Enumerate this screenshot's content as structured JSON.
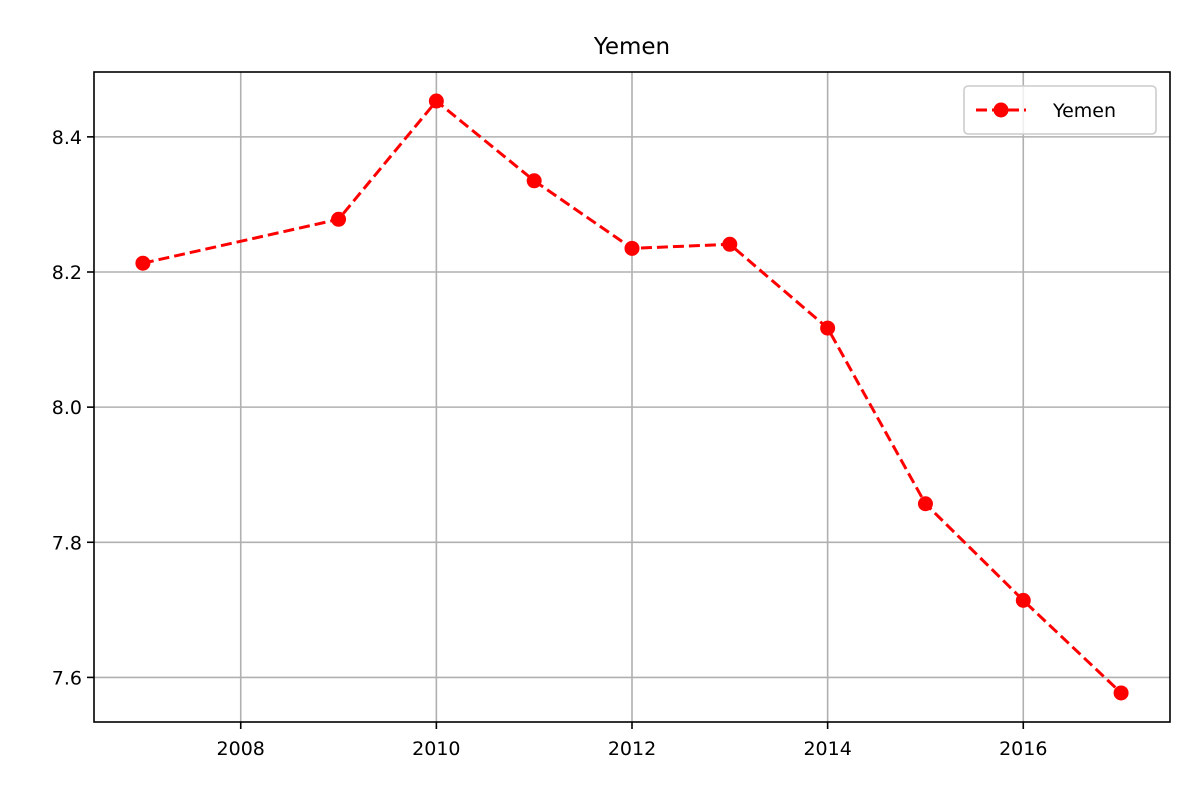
{
  "chart_data": {
    "type": "line",
    "title": "Yemen",
    "xlabel": "",
    "ylabel": "",
    "x": [
      2007,
      2009,
      2010,
      2011,
      2012,
      2013,
      2014,
      2015,
      2016,
      2017
    ],
    "series": [
      {
        "name": "Yemen",
        "values": [
          8.213,
          8.278,
          8.453,
          8.335,
          8.235,
          8.241,
          8.117,
          7.857,
          7.714,
          7.577
        ],
        "color": "#ff0000",
        "line_style": "dashed",
        "marker": "circle"
      }
    ],
    "xlim": [
      2006.5,
      2017.5
    ],
    "ylim": [
      7.534,
      8.496
    ],
    "xticks": [
      2008,
      2010,
      2012,
      2014,
      2016
    ],
    "yticks": [
      7.6,
      7.8,
      8.0,
      8.2,
      8.4
    ],
    "xtick_labels": [
      "2008",
      "2010",
      "2012",
      "2014",
      "2016"
    ],
    "ytick_labels": [
      "7.6",
      "7.8",
      "8.0",
      "8.2",
      "8.4"
    ],
    "grid": true,
    "legend_position": "top-right"
  }
}
